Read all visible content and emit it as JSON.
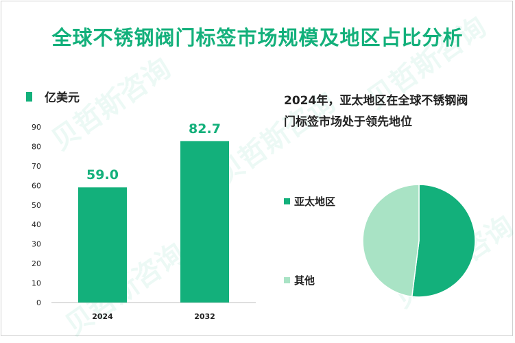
{
  "title": "全球不锈钢阀门标签市场规模及地区占比分析",
  "colors": {
    "primary": "#13b07b",
    "secondary": "#a9e3c5",
    "title": "#13b07b",
    "text": "#222222"
  },
  "watermark_text": "贝哲斯咨询",
  "chart_data": [
    {
      "type": "bar",
      "legend_label": "亿美元",
      "categories": [
        "2024",
        "2032"
      ],
      "values": [
        59.0,
        82.7
      ],
      "value_labels": [
        "59.0",
        "82.7"
      ],
      "ylim": [
        0,
        90
      ],
      "yticks": [
        0,
        10,
        20,
        30,
        40,
        50,
        60,
        70,
        80,
        90
      ],
      "grid": false
    },
    {
      "type": "pie",
      "title": "2024年，亚太地区在全球不锈钢阀门标签市场处于领先地位",
      "title_lines": [
        "2024年，亚太地区在全球不锈钢阀",
        "门标签市场处于领先地位"
      ],
      "slices": [
        {
          "label": "亚太地区",
          "value": 52,
          "color": "#13b07b"
        },
        {
          "label": "其他",
          "value": 48,
          "color": "#a9e3c5"
        }
      ],
      "legend_placement": "left"
    }
  ]
}
